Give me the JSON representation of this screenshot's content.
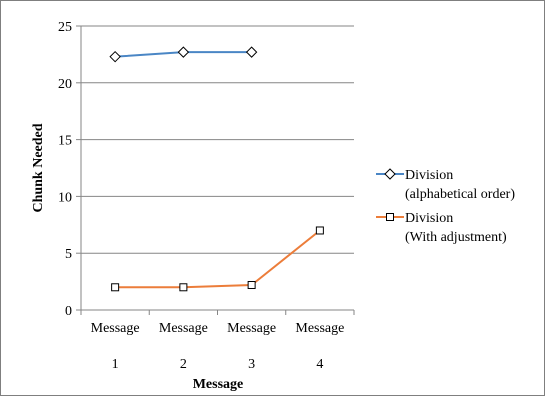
{
  "chart_data": {
    "type": "line",
    "title": "",
    "xlabel": "Message",
    "ylabel": "Chunk Needed",
    "x_tick_labels": [
      [
        "Message",
        "1"
      ],
      [
        "Message",
        "2"
      ],
      [
        "Message",
        "3"
      ],
      [
        "Message",
        "4"
      ]
    ],
    "y_ticks": [
      "0",
      "5",
      "10",
      "15",
      "20",
      "25"
    ],
    "ylim": [
      0,
      25
    ],
    "grid": "horizontal",
    "legend_position": "right",
    "series": [
      {
        "name_lines": [
          "Division",
          "(alphabetical order)"
        ],
        "color": "#4a86c5",
        "marker": "diamond",
        "values": [
          22.3,
          22.7,
          22.7,
          null
        ]
      },
      {
        "name_lines": [
          "Division",
          "(With adjustment)"
        ],
        "color": "#ec7d3a",
        "marker": "square",
        "values": [
          2.0,
          2.0,
          2.2,
          7.0
        ]
      }
    ]
  }
}
